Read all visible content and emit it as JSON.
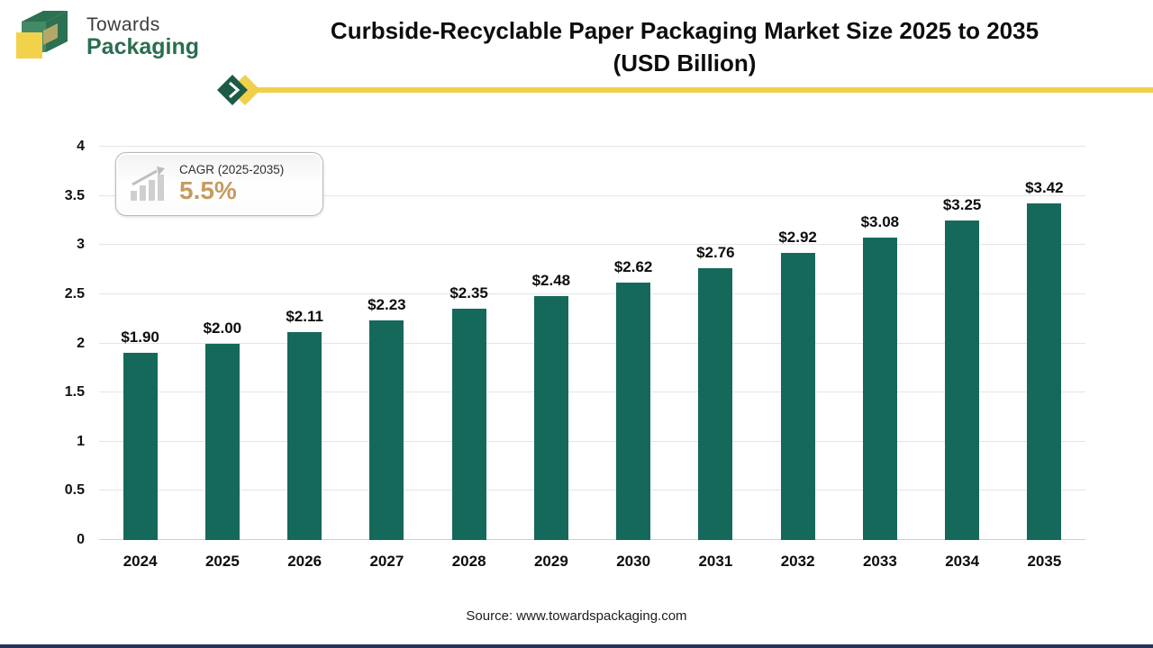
{
  "header": {
    "logo": {
      "line1": "Towards",
      "line2": "Packaging"
    },
    "title_line1": "Curbside-Recyclable Paper Packaging Market Size 2025 to 2035",
    "title_line2": "(USD Billion)"
  },
  "cagr_badge": {
    "label": "CAGR (2025-2035)",
    "value": "5.5%"
  },
  "source": {
    "prefix": "Source:",
    "url": "www.towardspackaging.com"
  },
  "colors": {
    "bar": "#15695a",
    "accent_gold": "#f0cf4b",
    "logo_green": "#2a6e50",
    "cagr_value_gold": "#c79a5e",
    "bottom_rule_navy": "#23345c"
  },
  "chart_data": {
    "type": "bar",
    "title": "Curbside-Recyclable Paper Packaging Market Size 2025 to 2035 (USD Billion)",
    "categories": [
      "2024",
      "2025",
      "2026",
      "2027",
      "2028",
      "2029",
      "2030",
      "2031",
      "2032",
      "2033",
      "2034",
      "2035"
    ],
    "values": [
      1.9,
      2.0,
      2.11,
      2.23,
      2.35,
      2.48,
      2.62,
      2.76,
      2.92,
      3.08,
      3.25,
      3.42
    ],
    "value_labels": [
      "$1.90",
      "$2.00",
      "$2.11",
      "$2.23",
      "$2.35",
      "$2.48",
      "$2.62",
      "$2.76",
      "$2.92",
      "$3.08",
      "$3.25",
      "$3.42"
    ],
    "xlabel": "",
    "ylabel": "",
    "ylim": [
      0,
      4
    ],
    "yticks": [
      0,
      0.5,
      1,
      1.5,
      2,
      2.5,
      3,
      3.5,
      4
    ],
    "grid": true,
    "legend": "none",
    "bar_color": "#15695a"
  }
}
